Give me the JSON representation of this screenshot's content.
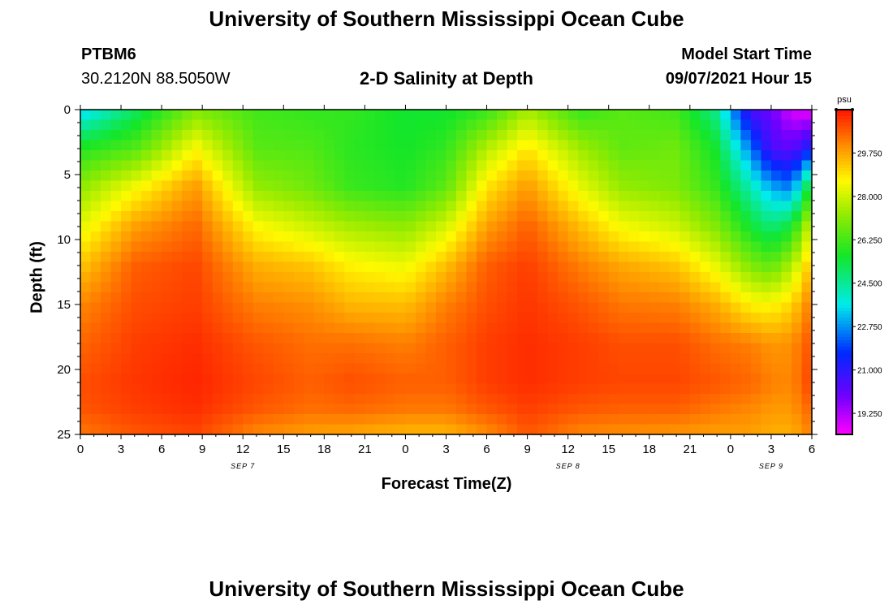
{
  "header": {
    "title": "University of Southern Mississippi Ocean Cube",
    "station_id": "PTBM6",
    "station_coords": "30.2120N  88.5050W",
    "subtitle": "2-D Salinity at Depth",
    "model_start_label": "Model Start Time",
    "model_start_value": "09/07/2021 Hour 15"
  },
  "footer": {
    "title": "University of Southern Mississippi Ocean Cube"
  },
  "chart_data": {
    "type": "heatmap",
    "title": "2-D Salinity at Depth",
    "xlabel": "Forecast Time(Z)",
    "ylabel": "Depth (ft)",
    "x_ticks": [
      "0",
      "3",
      "6",
      "9",
      "12",
      "15",
      "18",
      "21",
      "0",
      "3",
      "6",
      "9",
      "12",
      "15",
      "18",
      "21",
      "0",
      "3",
      "6"
    ],
    "x_range_hours": [
      0,
      54
    ],
    "date_labels": [
      {
        "text": "SEP 7",
        "hour": 12
      },
      {
        "text": "SEP 8",
        "hour": 36
      },
      {
        "text": "SEP 9",
        "hour": 51
      }
    ],
    "y_ticks": [
      "0",
      "5",
      "10",
      "15",
      "20",
      "25"
    ],
    "ylim_ft": [
      0,
      25
    ],
    "colorbar": {
      "unit": "psu",
      "tick_labels": [
        "19.250",
        "21.000",
        "22.750",
        "24.500",
        "26.250",
        "28.000",
        "29.750"
      ],
      "range": [
        18.4,
        31.5
      ]
    },
    "x_hours": [
      0,
      4,
      8.5,
      13,
      17,
      20,
      24,
      27,
      30,
      33,
      37,
      40,
      44,
      47,
      49.5,
      51,
      52.5,
      54
    ],
    "depth_rows": [
      {
        "depth_ft": 0,
        "values": [
          23.3,
          25.0,
          27.0,
          26.2,
          26.0,
          26.0,
          25.5,
          25.5,
          26.0,
          27.5,
          26.0,
          26.5,
          26.2,
          24.5,
          20.5,
          20.0,
          18.8,
          18.5
        ]
      },
      {
        "depth_ft": 3,
        "values": [
          25.8,
          26.4,
          28.6,
          26.5,
          26.4,
          25.9,
          25.6,
          26.0,
          27.7,
          28.9,
          27.4,
          26.6,
          26.8,
          25.5,
          22.5,
          20.5,
          20.2,
          21.5
        ]
      },
      {
        "depth_ft": 6,
        "values": [
          27.2,
          28.5,
          29.9,
          27.3,
          26.8,
          26.1,
          25.8,
          26.6,
          28.9,
          29.9,
          28.3,
          27.3,
          27.0,
          26.0,
          24.2,
          23.0,
          22.5,
          26.0
        ]
      },
      {
        "depth_ft": 9,
        "values": [
          28.3,
          29.8,
          30.5,
          28.6,
          28.0,
          27.5,
          27.2,
          28.1,
          29.8,
          30.6,
          29.4,
          28.5,
          28.0,
          27.0,
          25.5,
          24.8,
          25.5,
          28.2
        ]
      },
      {
        "depth_ft": 12,
        "values": [
          29.3,
          30.6,
          30.9,
          29.6,
          29.3,
          28.7,
          28.4,
          29.4,
          30.6,
          31.0,
          30.2,
          29.7,
          29.3,
          28.3,
          27.0,
          26.6,
          27.6,
          29.5
        ]
      },
      {
        "depth_ft": 15,
        "values": [
          30.1,
          30.8,
          31.0,
          30.2,
          30.0,
          29.5,
          29.4,
          30.2,
          30.8,
          31.1,
          30.7,
          30.3,
          30.2,
          29.6,
          28.7,
          28.6,
          29.1,
          30.3
        ]
      },
      {
        "depth_ft": 18,
        "values": [
          30.5,
          31.0,
          31.2,
          30.7,
          30.4,
          30.4,
          30.2,
          30.6,
          31.0,
          31.2,
          31.0,
          30.8,
          30.8,
          30.4,
          30.2,
          29.9,
          30.0,
          30.8
        ]
      },
      {
        "depth_ft": 21,
        "values": [
          30.8,
          31.1,
          31.3,
          30.9,
          30.6,
          30.8,
          30.6,
          30.6,
          31.0,
          31.2,
          31.0,
          30.9,
          30.9,
          30.7,
          30.5,
          30.2,
          30.1,
          31.0
        ]
      },
      {
        "depth_ft": 23,
        "values": [
          30.7,
          31.0,
          31.2,
          30.7,
          30.4,
          30.5,
          30.3,
          30.3,
          30.7,
          31.0,
          30.7,
          30.6,
          30.6,
          30.3,
          30.1,
          29.9,
          29.9,
          30.6
        ]
      },
      {
        "depth_ft": 25,
        "values": [
          30.3,
          30.7,
          30.9,
          30.1,
          29.8,
          29.7,
          29.5,
          29.5,
          30.0,
          30.7,
          30.1,
          30.0,
          29.9,
          29.8,
          29.8,
          29.6,
          29.6,
          30.2
        ]
      }
    ]
  }
}
